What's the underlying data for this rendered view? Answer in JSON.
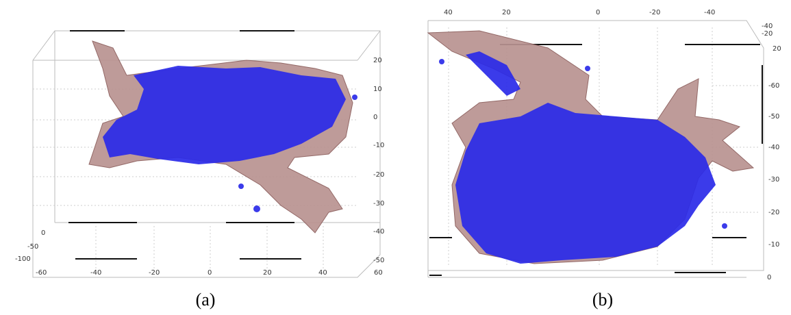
{
  "panels": [
    {
      "caption": "(a)",
      "right_axis": [
        20,
        10,
        0,
        -10,
        -20,
        -30,
        -40,
        -50
      ],
      "bottom_axis": [
        -60,
        -40,
        -20,
        0,
        20,
        40,
        60
      ],
      "left_axis": [
        0,
        -50,
        -100
      ]
    },
    {
      "caption": "(b)",
      "top_axis": [
        40,
        20,
        0,
        -20,
        -40
      ],
      "corner_axis": [
        -40,
        -20,
        20
      ],
      "right_axis": [
        -60,
        -50,
        -40,
        -30,
        -20,
        -10,
        0
      ]
    }
  ]
}
